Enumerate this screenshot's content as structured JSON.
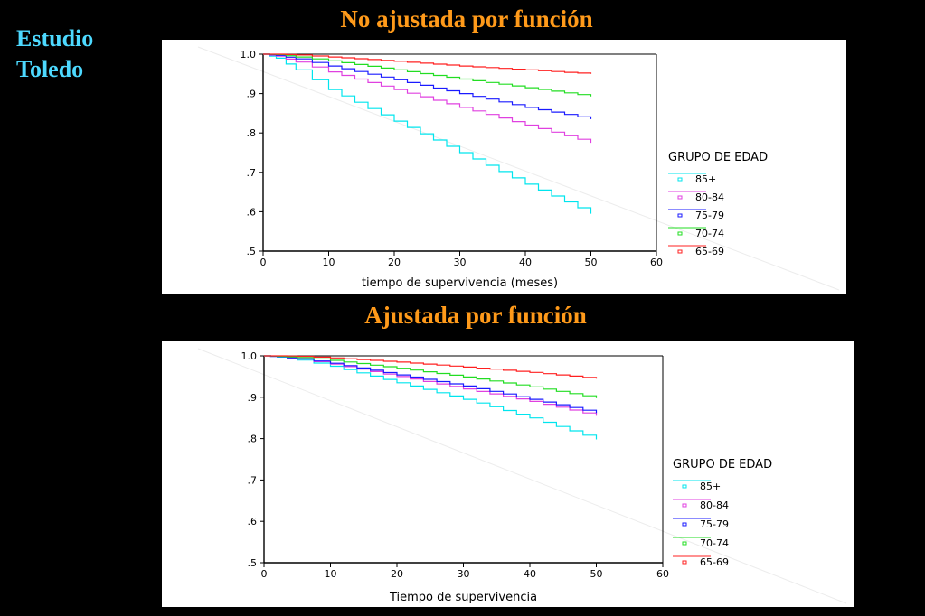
{
  "side_title": {
    "line1": "Estudio",
    "line2": "Toledo"
  },
  "chart_data": [
    {
      "type": "line",
      "title": "No ajustada por función",
      "xlabel": "tiempo de supervivencia (meses)",
      "ylabel": "",
      "xlim": [
        0,
        60
      ],
      "ylim": [
        0.5,
        1.0
      ],
      "x_ticks": [
        "0",
        "10",
        "20",
        "30",
        "40",
        "50",
        "60"
      ],
      "y_ticks": [
        "1.0",
        ".9",
        ".8",
        ".7",
        ".6",
        ".5"
      ],
      "legend_title": "GRUPO DE EDAD",
      "legend_position": "right",
      "x": [
        0,
        2,
        5,
        10,
        20,
        30,
        40,
        50
      ],
      "series": [
        {
          "name": "85+",
          "color": "#00e5ee",
          "values": [
            1.0,
            0.99,
            0.96,
            0.91,
            0.83,
            0.75,
            0.67,
            0.595
          ]
        },
        {
          "name": "80-84",
          "color": "#e040e0",
          "values": [
            1.0,
            0.995,
            0.98,
            0.955,
            0.91,
            0.865,
            0.82,
            0.775
          ]
        },
        {
          "name": "75-79",
          "color": "#1a1aff",
          "values": [
            1.0,
            0.997,
            0.988,
            0.97,
            0.935,
            0.9,
            0.865,
            0.835
          ]
        },
        {
          "name": "70-74",
          "color": "#22dd22",
          "values": [
            1.0,
            0.999,
            0.993,
            0.983,
            0.96,
            0.937,
            0.915,
            0.893
          ]
        },
        {
          "name": "65-69",
          "color": "#ff2020",
          "values": [
            1.0,
            1.0,
            0.998,
            0.993,
            0.982,
            0.97,
            0.96,
            0.95
          ]
        }
      ]
    },
    {
      "type": "line",
      "title": "Ajustada por función",
      "xlabel": "Tiempo de supervivencia",
      "ylabel": "",
      "xlim": [
        0,
        60
      ],
      "ylim": [
        0.5,
        1.0
      ],
      "x_ticks": [
        "0",
        "10",
        "20",
        "30",
        "40",
        "50",
        "60"
      ],
      "y_ticks": [
        "1.0",
        ".9",
        ".8",
        ".7",
        ".6",
        ".5"
      ],
      "legend_title": "GRUPO DE EDAD",
      "legend_position": "right",
      "x": [
        0,
        2,
        5,
        10,
        20,
        30,
        40,
        50
      ],
      "series": [
        {
          "name": "85+",
          "color": "#00e5ee",
          "values": [
            1.0,
            0.997,
            0.99,
            0.975,
            0.935,
            0.895,
            0.85,
            0.798
          ]
        },
        {
          "name": "80-84",
          "color": "#e040e0",
          "values": [
            1.0,
            0.998,
            0.992,
            0.98,
            0.95,
            0.92,
            0.89,
            0.855
          ]
        },
        {
          "name": "75-79",
          "color": "#1a1aff",
          "values": [
            1.0,
            0.998,
            0.993,
            0.982,
            0.954,
            0.927,
            0.895,
            0.862
          ]
        },
        {
          "name": "70-74",
          "color": "#22dd22",
          "values": [
            1.0,
            0.999,
            0.996,
            0.989,
            0.97,
            0.949,
            0.925,
            0.898
          ]
        },
        {
          "name": "65-69",
          "color": "#ff2020",
          "values": [
            1.0,
            1.0,
            0.999,
            0.995,
            0.985,
            0.973,
            0.96,
            0.945
          ]
        }
      ]
    }
  ]
}
